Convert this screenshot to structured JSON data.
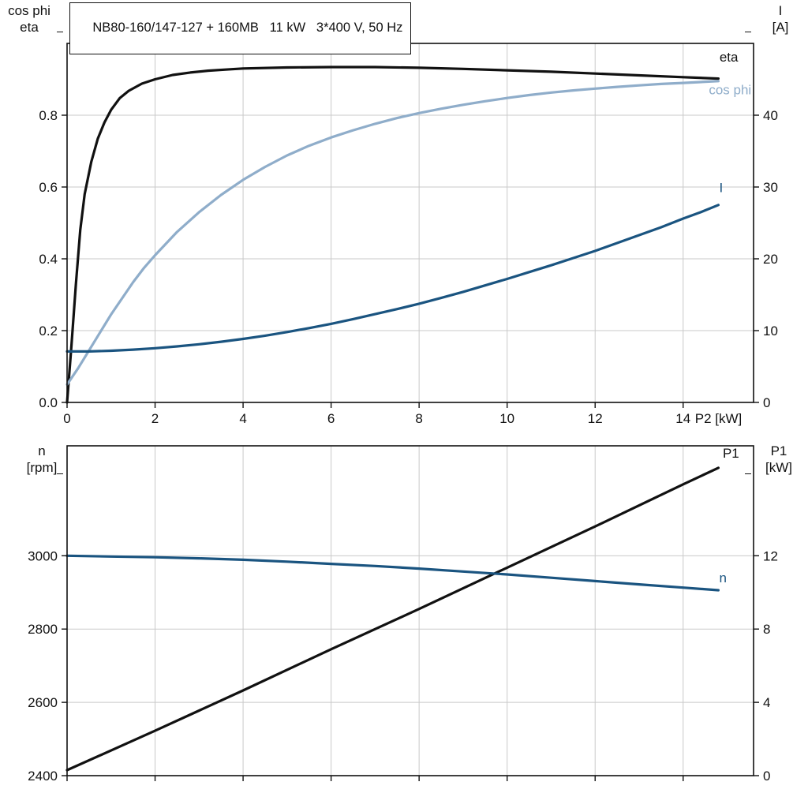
{
  "colors": {
    "black": "#111111",
    "dark_blue": "#1a5480",
    "light_blue": "#8fadca",
    "grid": "#c9c9c9",
    "axis": "#111111",
    "background": "#ffffff"
  },
  "axis_titles": {
    "upper_left": [
      "cos phi",
      "eta"
    ],
    "upper_right": [
      "I",
      "[A]"
    ],
    "lower_left": [
      "n",
      "[rpm]"
    ],
    "lower_right": [
      "P1",
      "[kW]"
    ]
  },
  "chart_data": [
    {
      "type": "line",
      "title": "NB80-160/147-127 + 160MB   11 kW   3*400 V, 50 Hz",
      "grid": true,
      "legend_position": "curve-end-labels",
      "x": {
        "label": "P2 [kW]",
        "min": 0,
        "max": 15.6,
        "ticks": [
          0,
          2,
          4,
          6,
          8,
          10,
          12,
          14
        ],
        "tick_labels_visible": true
      },
      "y_left": {
        "title": "cos phi / eta",
        "min": 0,
        "max": 1.0,
        "ticks": [
          0,
          0.2,
          0.4,
          0.6,
          0.8
        ],
        "decimals": 1
      },
      "y_right": {
        "title": "I [A]",
        "min": 0,
        "max": 50,
        "ticks": [
          0,
          10,
          20,
          30,
          40
        ]
      },
      "series": [
        {
          "name": "eta",
          "axis": "left",
          "color_key": "black",
          "label": {
            "text": "eta",
            "x": 15.25,
            "y": 0.95,
            "anchor": "end"
          },
          "points": [
            [
              0,
              0
            ],
            [
              0.1,
              0.16
            ],
            [
              0.2,
              0.33
            ],
            [
              0.3,
              0.48
            ],
            [
              0.4,
              0.58
            ],
            [
              0.55,
              0.67
            ],
            [
              0.7,
              0.735
            ],
            [
              0.85,
              0.78
            ],
            [
              1,
              0.815
            ],
            [
              1.2,
              0.848
            ],
            [
              1.4,
              0.868
            ],
            [
              1.7,
              0.888
            ],
            [
              2,
              0.9
            ],
            [
              2.4,
              0.912
            ],
            [
              2.8,
              0.919
            ],
            [
              3.2,
              0.924
            ],
            [
              3.6,
              0.927
            ],
            [
              4,
              0.93
            ],
            [
              5,
              0.933
            ],
            [
              6,
              0.934
            ],
            [
              7,
              0.934
            ],
            [
              8,
              0.932
            ],
            [
              9,
              0.929
            ],
            [
              10,
              0.925
            ],
            [
              11,
              0.921
            ],
            [
              12,
              0.916
            ],
            [
              13,
              0.911
            ],
            [
              14,
              0.906
            ],
            [
              14.8,
              0.902
            ]
          ]
        },
        {
          "name": "cos phi",
          "axis": "left",
          "color_key": "light_blue",
          "label": {
            "text": "cos phi",
            "x": 15.55,
            "y": 0.858,
            "anchor": "end"
          },
          "points": [
            [
              0,
              0.05
            ],
            [
              0.25,
              0.095
            ],
            [
              0.5,
              0.145
            ],
            [
              0.75,
              0.195
            ],
            [
              1,
              0.245
            ],
            [
              1.25,
              0.29
            ],
            [
              1.5,
              0.335
            ],
            [
              1.75,
              0.375
            ],
            [
              2,
              0.41
            ],
            [
              2.5,
              0.475
            ],
            [
              3,
              0.53
            ],
            [
              3.5,
              0.578
            ],
            [
              4,
              0.62
            ],
            [
              4.5,
              0.656
            ],
            [
              5,
              0.688
            ],
            [
              5.5,
              0.715
            ],
            [
              6,
              0.738
            ],
            [
              6.5,
              0.758
            ],
            [
              7,
              0.776
            ],
            [
              7.5,
              0.792
            ],
            [
              8,
              0.806
            ],
            [
              8.5,
              0.818
            ],
            [
              9,
              0.829
            ],
            [
              9.5,
              0.839
            ],
            [
              10,
              0.848
            ],
            [
              10.5,
              0.856
            ],
            [
              11,
              0.863
            ],
            [
              11.5,
              0.869
            ],
            [
              12,
              0.874
            ],
            [
              12.5,
              0.879
            ],
            [
              13,
              0.883
            ],
            [
              13.5,
              0.887
            ],
            [
              14,
              0.89
            ],
            [
              14.8,
              0.895
            ]
          ]
        },
        {
          "name": "I",
          "axis": "right",
          "color_key": "dark_blue",
          "label": {
            "text": "I",
            "x": 14.82,
            "y": 29.3,
            "anchor": "start"
          },
          "points": [
            [
              0,
              7.1
            ],
            [
              0.5,
              7.1
            ],
            [
              1,
              7.2
            ],
            [
              1.5,
              7.35
            ],
            [
              2,
              7.55
            ],
            [
              2.5,
              7.8
            ],
            [
              3,
              8.1
            ],
            [
              3.5,
              8.45
            ],
            [
              4,
              8.85
            ],
            [
              4.5,
              9.3
            ],
            [
              5,
              9.8
            ],
            [
              5.5,
              10.35
            ],
            [
              6,
              10.95
            ],
            [
              6.5,
              11.6
            ],
            [
              7,
              12.3
            ],
            [
              7.5,
              13
            ],
            [
              8,
              13.75
            ],
            [
              8.5,
              14.55
            ],
            [
              9,
              15.4
            ],
            [
              9.5,
              16.3
            ],
            [
              10,
              17.2
            ],
            [
              10.5,
              18.15
            ],
            [
              11,
              19.1
            ],
            [
              11.5,
              20.1
            ],
            [
              12,
              21.1
            ],
            [
              12.5,
              22.2
            ],
            [
              13,
              23.3
            ],
            [
              13.5,
              24.4
            ],
            [
              14,
              25.6
            ],
            [
              14.4,
              26.5
            ],
            [
              14.8,
              27.5
            ]
          ]
        }
      ]
    },
    {
      "type": "line",
      "title": "",
      "grid": true,
      "legend_position": "curve-end-labels",
      "x": {
        "min": 0,
        "max": 15.6,
        "ticks": [
          0,
          2,
          4,
          6,
          8,
          10,
          12,
          14
        ],
        "tick_labels_visible": false
      },
      "y_left": {
        "title": "n [rpm]",
        "min": 2400,
        "max": 3300,
        "ticks": [
          2400,
          2600,
          2800,
          3000
        ],
        "decimals": 0
      },
      "y_right": {
        "title": "P1 [kW]",
        "min": 0,
        "max": 18,
        "ticks": [
          0,
          4,
          8,
          12
        ]
      },
      "series": [
        {
          "name": "P1",
          "axis": "right",
          "color_key": "black",
          "label": {
            "text": "P1",
            "x": 14.9,
            "y": 17.35,
            "anchor": "start"
          },
          "points": [
            [
              0,
              0.3
            ],
            [
              2,
              2.45
            ],
            [
              4,
              4.65
            ],
            [
              6,
              6.9
            ],
            [
              8,
              9.1
            ],
            [
              10,
              11.35
            ],
            [
              12,
              13.6
            ],
            [
              14,
              15.9
            ],
            [
              14.8,
              16.8
            ]
          ]
        },
        {
          "name": "n",
          "axis": "left",
          "color_key": "dark_blue",
          "label": {
            "text": "n",
            "x": 14.82,
            "y": 2928,
            "anchor": "start"
          },
          "points": [
            [
              0,
              3000
            ],
            [
              1,
              2998
            ],
            [
              2,
              2996
            ],
            [
              3,
              2993
            ],
            [
              4,
              2989
            ],
            [
              5,
              2984
            ],
            [
              6,
              2978
            ],
            [
              7,
              2972
            ],
            [
              8,
              2965
            ],
            [
              9,
              2957
            ],
            [
              10,
              2949
            ],
            [
              11,
              2940
            ],
            [
              12,
              2931
            ],
            [
              13,
              2922
            ],
            [
              14,
              2913
            ],
            [
              14.8,
              2906
            ]
          ]
        }
      ]
    }
  ]
}
